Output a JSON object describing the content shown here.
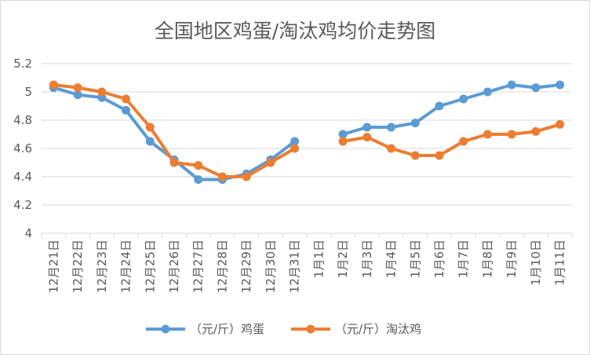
{
  "chart_data": {
    "type": "line",
    "title": "全国地区鸡蛋/淘汰鸡均价走势图",
    "xlabel": "",
    "ylabel": "",
    "ylim": [
      4,
      5.2
    ],
    "yticks": [
      "4",
      "4.2",
      "4.4",
      "4.6",
      "4.8",
      "5",
      "5.2"
    ],
    "grid": true,
    "legend_position": "bottom",
    "categories": [
      "12月21日",
      "12月22日",
      "12月23日",
      "12月24日",
      "12月25日",
      "12月26日",
      "12月27日",
      "12月28日",
      "12月29日",
      "12月30日",
      "12月31日",
      "1月1日",
      "1月2日",
      "1月3日",
      "1月4日",
      "1月5日",
      "1月6日",
      "1月7日",
      "1月8日",
      "1月9日",
      "1月10日",
      "1月11日"
    ],
    "series": [
      {
        "name": "（元/斤）鸡蛋",
        "color": "#5b9bd5",
        "values": [
          5.03,
          4.98,
          4.96,
          4.87,
          4.65,
          4.52,
          4.38,
          4.38,
          4.42,
          4.52,
          4.65,
          null,
          4.7,
          4.75,
          4.75,
          4.78,
          4.9,
          4.95,
          5.0,
          5.05,
          5.03,
          5.05
        ]
      },
      {
        "name": "（元/斤）淘汰鸡",
        "color": "#ed7d31",
        "values": [
          5.05,
          5.03,
          5.0,
          4.95,
          4.75,
          4.5,
          4.48,
          4.4,
          4.4,
          4.5,
          4.6,
          null,
          4.65,
          4.68,
          4.6,
          4.55,
          4.55,
          4.65,
          4.7,
          4.7,
          4.72,
          4.77
        ]
      }
    ]
  }
}
